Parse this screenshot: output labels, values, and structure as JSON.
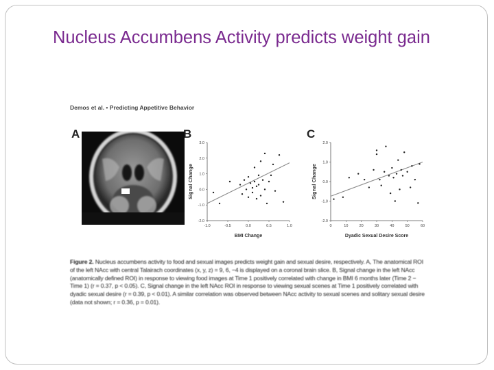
{
  "slide": {
    "title": "Nucleus Accumbens Activity predicts weight gain"
  },
  "figure": {
    "running_head": "Demos et al. • Predicting Appetitive Behavior",
    "panels": {
      "a": "A",
      "b": "B",
      "c": "C"
    },
    "caption_label": "Figure 2.",
    "caption_text": "Nucleus accumbens activity to food and sexual images predicts weight gain and sexual desire, respectively. A, The anatomical ROI of the left NAcc with central Talairach coordinates (x, y, z) = 9, 6, −4 is displayed on a coronal brain slice. B, Signal change in the left NAcc (anatomically defined ROI) in response to viewing food images at Time 1 positively correlated with change in BMI 6 months later (Time 2 − Time 1) (r = 0.37, p < 0.05). C, Signal change in the left NAcc ROI in response to viewing sexual scenes at Time 1 positively correlated with dyadic sexual desire (r = 0.39, p < 0.01). A similar correlation was observed between NAcc activity to sexual scenes and solitary sexual desire (data not shown; r = 0.36, p = 0.01)."
  },
  "chart_data": [
    {
      "type": "scatter",
      "panel": "B",
      "xlabel": "BMI Change",
      "ylabel": "Signal Change",
      "xlim": [
        -1.0,
        1.0
      ],
      "ylim": [
        -2.0,
        3.0
      ],
      "x_ticks": [
        "-1.0",
        "-0.5",
        "0.0",
        "0.5",
        "1.0"
      ],
      "y_ticks": [
        "3.0",
        "2.0",
        "1.0",
        "0.0",
        "-1.0",
        "-2.0"
      ],
      "points": [
        [
          -0.85,
          -0.2
        ],
        [
          -0.7,
          -0.9
        ],
        [
          -0.45,
          0.5
        ],
        [
          -0.2,
          0.3
        ],
        [
          -0.15,
          -0.3
        ],
        [
          -0.1,
          0.6
        ],
        [
          -0.05,
          0.0
        ],
        [
          0.0,
          0.8
        ],
        [
          0.0,
          -0.5
        ],
        [
          0.05,
          0.4
        ],
        [
          0.1,
          -0.2
        ],
        [
          0.1,
          0.1
        ],
        [
          0.15,
          0.5
        ],
        [
          0.15,
          1.4
        ],
        [
          0.2,
          0.2
        ],
        [
          0.2,
          -0.6
        ],
        [
          0.25,
          0.9
        ],
        [
          0.25,
          0.3
        ],
        [
          0.3,
          -0.4
        ],
        [
          0.3,
          1.8
        ],
        [
          0.35,
          0.6
        ],
        [
          0.4,
          0.0
        ],
        [
          0.4,
          2.3
        ],
        [
          0.45,
          -0.9
        ],
        [
          0.5,
          0.5
        ],
        [
          0.55,
          0.9
        ],
        [
          0.6,
          1.6
        ],
        [
          0.65,
          -0.1
        ],
        [
          0.75,
          2.2
        ],
        [
          0.85,
          -0.8
        ]
      ],
      "fit_line": [
        [
          -1.0,
          -0.9
        ],
        [
          1.0,
          1.7
        ]
      ]
    },
    {
      "type": "scatter",
      "panel": "C",
      "xlabel": "Dyadic Sexual Desire Score",
      "ylabel": "Signal Change",
      "xlim": [
        0,
        60
      ],
      "ylim": [
        -2.0,
        2.0
      ],
      "x_ticks": [
        "0",
        "10",
        "20",
        "30",
        "40",
        "50",
        "60"
      ],
      "y_ticks": [
        "2.0",
        "1.0",
        "0.0",
        "-1.0",
        "-2.0"
      ],
      "points": [
        [
          2,
          -0.9
        ],
        [
          8,
          -0.8
        ],
        [
          12,
          0.2
        ],
        [
          18,
          0.4
        ],
        [
          22,
          0.1
        ],
        [
          25,
          -0.3
        ],
        [
          28,
          0.6
        ],
        [
          30,
          1.6
        ],
        [
          30,
          1.4
        ],
        [
          32,
          0.1
        ],
        [
          33,
          -0.2
        ],
        [
          35,
          0.5
        ],
        [
          36,
          1.8
        ],
        [
          38,
          0.3
        ],
        [
          39,
          -0.6
        ],
        [
          40,
          0.7
        ],
        [
          41,
          0.2
        ],
        [
          42,
          -1.0
        ],
        [
          43,
          0.4
        ],
        [
          44,
          1.1
        ],
        [
          45,
          -0.4
        ],
        [
          46,
          0.6
        ],
        [
          47,
          0.3
        ],
        [
          48,
          1.5
        ],
        [
          50,
          0.5
        ],
        [
          52,
          -0.3
        ],
        [
          53,
          0.8
        ],
        [
          55,
          0.1
        ],
        [
          57,
          -1.1
        ],
        [
          58,
          0.9
        ]
      ],
      "fit_line": [
        [
          0,
          -0.75
        ],
        [
          60,
          1.0
        ]
      ]
    }
  ]
}
